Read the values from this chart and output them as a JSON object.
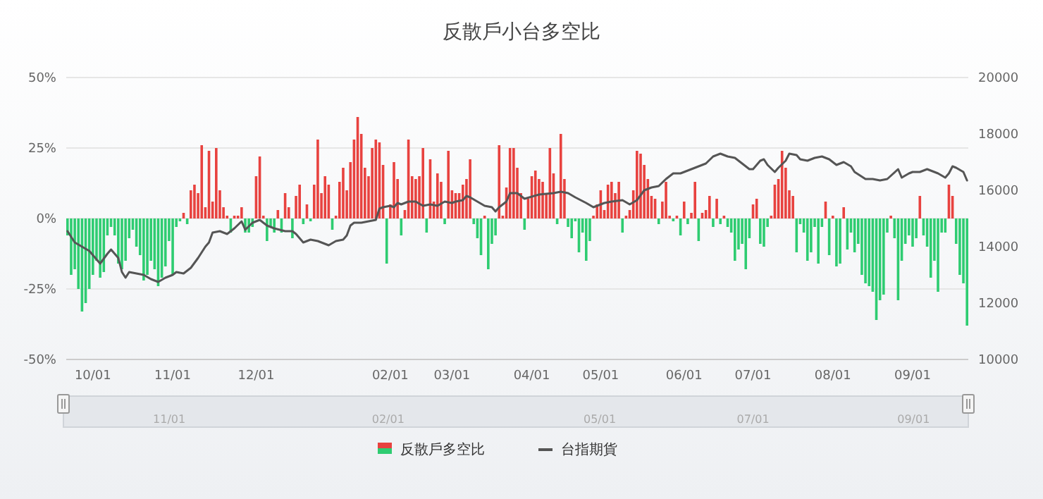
{
  "chart_data": {
    "type": "bar",
    "title": "反散戶小台多空比",
    "categories": [
      null,
      null,
      null,
      null,
      null,
      null,
      null,
      "10/01",
      null,
      null,
      null,
      null,
      null,
      null,
      null,
      null,
      null,
      null,
      null,
      null,
      null,
      null,
      null,
      null,
      null,
      null,
      null,
      null,
      null,
      "11/01",
      null,
      null,
      null,
      null,
      null,
      null,
      null,
      null,
      null,
      null,
      null,
      null,
      null,
      null,
      null,
      null,
      null,
      null,
      null,
      null,
      null,
      null,
      "12/01",
      null,
      null,
      null,
      null,
      null,
      null,
      null,
      null,
      null,
      null,
      null,
      null,
      null,
      null,
      null,
      null,
      null,
      null,
      null,
      null,
      null,
      null,
      null,
      null,
      null,
      null,
      null,
      null,
      null,
      null,
      null,
      null,
      null,
      null,
      null,
      null,
      "02/01",
      null,
      null,
      null,
      null,
      null,
      null,
      null,
      null,
      null,
      null,
      null,
      null,
      null,
      null,
      null,
      null,
      "03/01",
      null,
      null,
      null,
      null,
      null,
      null,
      null,
      null,
      null,
      null,
      null,
      null,
      null,
      null,
      null,
      null,
      null,
      null,
      null,
      null,
      null,
      "04/01",
      null,
      null,
      null,
      null,
      null,
      null,
      null,
      null,
      null,
      null,
      null,
      null,
      null,
      null,
      null,
      null,
      null,
      null,
      "05/01",
      null,
      null,
      null,
      null,
      null,
      null,
      null,
      null,
      null,
      null,
      null,
      null,
      null,
      null,
      null,
      null,
      null,
      null,
      null,
      null,
      null,
      null,
      "06/01",
      null,
      null,
      null,
      null,
      null,
      null,
      null,
      null,
      null,
      null,
      null,
      null,
      null,
      null,
      null,
      null,
      null,
      null,
      "07/01",
      null,
      null,
      null,
      null,
      null,
      null,
      null,
      null,
      null,
      null,
      null,
      null,
      null,
      null,
      null,
      null,
      null,
      null,
      null,
      null,
      null,
      "08/01",
      null,
      null,
      null,
      null,
      null,
      null,
      null,
      null,
      null,
      null,
      null,
      null,
      null,
      null,
      null,
      null,
      null,
      null,
      null,
      null,
      null,
      "09/01",
      null,
      null,
      null,
      null,
      null,
      null,
      null,
      null,
      null,
      null,
      null,
      null,
      null,
      null,
      null
    ],
    "series": [
      {
        "name": "反散戶多空比",
        "values": [
          -6,
          -20,
          -18,
          -25,
          -33,
          -30,
          -25,
          -20,
          -15,
          -21,
          -19,
          -6,
          -3,
          -6,
          -16,
          -18,
          -15,
          -7,
          -4,
          -10,
          -13,
          -22,
          -20,
          -15,
          -18,
          -24,
          -21,
          -17,
          -8,
          -20,
          -3,
          -1,
          2,
          -2,
          10,
          12,
          9,
          26,
          4,
          24,
          6,
          25,
          10,
          4,
          1,
          -5,
          1,
          1,
          4,
          -5,
          -5,
          -3,
          15,
          22,
          1,
          -8,
          -3,
          -5,
          3,
          -5,
          9,
          4,
          -7,
          8,
          12,
          -2,
          5,
          -1,
          12,
          28,
          9,
          15,
          12,
          -4,
          1,
          13,
          18,
          10,
          20,
          28,
          36,
          30,
          18,
          15,
          25,
          28,
          27,
          19,
          -16,
          5,
          20,
          14,
          -6,
          3,
          28,
          15,
          14,
          15,
          25,
          -5,
          21,
          6,
          16,
          13,
          -2,
          24,
          10,
          9,
          9,
          12,
          14,
          21,
          -2,
          -7,
          -13,
          1,
          -18,
          -9,
          -6,
          26,
          1,
          11,
          25,
          25,
          18,
          9,
          -4,
          7,
          15,
          17,
          14,
          13,
          9,
          25,
          16,
          -2,
          30,
          14,
          -3,
          -7,
          -1,
          -12,
          -5,
          -15,
          -8,
          1,
          5,
          10,
          3,
          12,
          13,
          9,
          13,
          -5,
          1,
          3,
          10,
          24,
          23,
          19,
          14,
          8,
          7,
          -2,
          6,
          13,
          1,
          -1,
          1,
          -6,
          6,
          -2,
          2,
          13,
          -8,
          2,
          3,
          8,
          -3,
          7,
          -2,
          1,
          -3,
          -5,
          -15,
          -11,
          -9,
          -18,
          -7,
          5,
          7,
          -9,
          -10,
          -3,
          1,
          12,
          14,
          24,
          18,
          10,
          8,
          -12,
          -2,
          -5,
          -15,
          -12,
          -3,
          -16,
          -3,
          6,
          -13,
          1,
          -17,
          -16,
          4,
          -11,
          -5,
          -12,
          -9,
          -20,
          -23,
          -24,
          -26,
          -36,
          -29,
          -27,
          -5,
          1,
          -7,
          -29,
          -15,
          -9,
          -6,
          -10,
          -7,
          8,
          -6,
          -10,
          -21,
          -15,
          -26,
          -5,
          -5,
          12,
          8,
          -9,
          -20,
          -23,
          -38
        ],
        "colors": [
          "#2ecc71",
          "#2ecc71",
          "#2ecc71",
          "#2ecc71",
          "#2ecc71",
          "#2ecc71",
          "#2ecc71",
          "#2ecc71",
          "#2ecc71",
          "#2ecc71",
          "#2ecc71",
          "#2ecc71",
          "#2ecc71",
          "#2ecc71",
          "#2ecc71",
          "#2ecc71",
          "#2ecc71",
          "#2ecc71",
          "#2ecc71",
          "#2ecc71",
          "#2ecc71",
          "#2ecc71",
          "#2ecc71",
          "#2ecc71",
          "#2ecc71",
          "#2ecc71",
          "#2ecc71",
          "#2ecc71",
          "#2ecc71",
          "#2ecc71",
          "#2ecc71",
          "#2ecc71",
          "#e8423f",
          "#2ecc71",
          "#e8423f",
          "#e8423f",
          "#e8423f",
          "#e8423f",
          "#e8423f",
          "#e8423f",
          "#e8423f",
          "#e8423f",
          "#e8423f",
          "#e8423f",
          "#e8423f",
          "#2ecc71",
          "#e8423f",
          "#e8423f",
          "#e8423f",
          "#2ecc71",
          "#2ecc71",
          "#2ecc71",
          "#e8423f",
          "#e8423f",
          "#e8423f",
          "#2ecc71",
          "#2ecc71",
          "#2ecc71",
          "#e8423f",
          "#2ecc71",
          "#e8423f",
          "#e8423f",
          "#2ecc71",
          "#e8423f",
          "#e8423f",
          "#2ecc71",
          "#e8423f",
          "#2ecc71",
          "#e8423f",
          "#e8423f",
          "#e8423f",
          "#e8423f",
          "#e8423f",
          "#2ecc71",
          "#e8423f",
          "#e8423f",
          "#e8423f",
          "#e8423f",
          "#e8423f",
          "#e8423f",
          "#e8423f",
          "#e8423f",
          "#e8423f",
          "#e8423f",
          "#e8423f",
          "#e8423f",
          "#e8423f",
          "#e8423f",
          "#2ecc71",
          "#e8423f",
          "#e8423f",
          "#e8423f",
          "#2ecc71",
          "#e8423f",
          "#e8423f",
          "#e8423f",
          "#e8423f",
          "#e8423f",
          "#e8423f",
          "#2ecc71",
          "#e8423f",
          "#e8423f",
          "#e8423f",
          "#e8423f",
          "#2ecc71",
          "#e8423f",
          "#e8423f",
          "#e8423f",
          "#e8423f",
          "#e8423f",
          "#e8423f",
          "#e8423f",
          "#2ecc71",
          "#2ecc71",
          "#2ecc71",
          "#e8423f",
          "#2ecc71",
          "#2ecc71",
          "#2ecc71",
          "#e8423f",
          "#e8423f",
          "#e8423f",
          "#e8423f",
          "#e8423f",
          "#e8423f",
          "#e8423f",
          "#2ecc71",
          "#e8423f",
          "#e8423f",
          "#e8423f",
          "#e8423f",
          "#e8423f",
          "#e8423f",
          "#e8423f",
          "#e8423f",
          "#2ecc71",
          "#e8423f",
          "#e8423f",
          "#2ecc71",
          "#2ecc71",
          "#2ecc71",
          "#2ecc71",
          "#2ecc71",
          "#2ecc71",
          "#2ecc71",
          "#e8423f",
          "#e8423f",
          "#e8423f",
          "#e8423f",
          "#e8423f",
          "#e8423f",
          "#e8423f",
          "#e8423f",
          "#2ecc71",
          "#e8423f",
          "#e8423f",
          "#e8423f",
          "#e8423f",
          "#e8423f",
          "#e8423f",
          "#e8423f",
          "#e8423f",
          "#e8423f",
          "#2ecc71",
          "#e8423f",
          "#e8423f",
          "#e8423f",
          "#2ecc71",
          "#e8423f",
          "#2ecc71",
          "#e8423f",
          "#2ecc71",
          "#e8423f",
          "#e8423f",
          "#2ecc71",
          "#e8423f",
          "#e8423f",
          "#e8423f",
          "#2ecc71",
          "#e8423f",
          "#2ecc71",
          "#e8423f",
          "#2ecc71",
          "#2ecc71",
          "#2ecc71",
          "#2ecc71",
          "#2ecc71",
          "#2ecc71",
          "#2ecc71",
          "#e8423f",
          "#e8423f",
          "#2ecc71",
          "#2ecc71",
          "#2ecc71",
          "#e8423f",
          "#e8423f",
          "#e8423f",
          "#e8423f",
          "#e8423f",
          "#e8423f",
          "#e8423f",
          "#2ecc71",
          "#2ecc71",
          "#2ecc71",
          "#2ecc71",
          "#2ecc71",
          "#2ecc71",
          "#2ecc71",
          "#2ecc71",
          "#e8423f",
          "#2ecc71",
          "#e8423f",
          "#2ecc71",
          "#2ecc71",
          "#e8423f",
          "#2ecc71",
          "#2ecc71",
          "#2ecc71",
          "#2ecc71",
          "#2ecc71",
          "#2ecc71",
          "#2ecc71",
          "#2ecc71",
          "#2ecc71",
          "#2ecc71",
          "#2ecc71",
          "#2ecc71",
          "#e8423f",
          "#2ecc71",
          "#2ecc71",
          "#2ecc71",
          "#2ecc71",
          "#2ecc71",
          "#2ecc71",
          "#2ecc71",
          "#e8423f",
          "#2ecc71",
          "#2ecc71",
          "#2ecc71",
          "#2ecc71",
          "#2ecc71",
          "#2ecc71",
          "#2ecc71",
          "#e8423f",
          "#e8423f",
          "#2ecc71",
          "#2ecc71",
          "#2ecc71",
          "#2ecc71"
        ]
      },
      {
        "name": "台指期貨",
        "type": "line",
        "axis": "y2",
        "color": "#555555",
        "values": [
          14550,
          null,
          14150,
          null,
          null,
          null,
          13850,
          null,
          null,
          13400,
          null,
          13750,
          13900,
          null,
          13600,
          13100,
          12900,
          13100,
          null,
          13050,
          null,
          13000,
          null,
          12850,
          null,
          12750,
          null,
          12900,
          null,
          13000,
          13100,
          null,
          13050,
          null,
          13250,
          null,
          13600,
          null,
          14000,
          14150,
          14500,
          null,
          14550,
          null,
          14450,
          null,
          14650,
          null,
          14900,
          14600,
          null,
          14850,
          null,
          14950,
          null,
          14750,
          null,
          14650,
          null,
          null,
          14550,
          null,
          14550,
          14450,
          null,
          14150,
          null,
          14250,
          null,
          14200,
          null,
          null,
          14050,
          null,
          14200,
          null,
          14250,
          14400,
          14750,
          14850,
          null,
          14850,
          null,
          14900,
          null,
          14950,
          15350,
          15400,
          null,
          15450,
          15400,
          15550,
          15500,
          null,
          15600,
          15600,
          15600,
          null,
          15450,
          null,
          15500,
          null,
          15450,
          null,
          15600,
          null,
          15550,
          15600,
          null,
          15650,
          15800,
          15750,
          null,
          15600,
          null,
          15450,
          null,
          15400,
          15250,
          15400,
          null,
          15600,
          15900,
          null,
          15900,
          null,
          15700,
          null,
          null,
          null,
          15850,
          null,
          null,
          null,
          15900,
          null,
          15950,
          null,
          15900,
          null,
          15750,
          null,
          null,
          15550,
          null,
          15400,
          15450,
          null,
          15550,
          null,
          15600,
          null,
          null,
          15650,
          null,
          15500,
          null,
          15650,
          null,
          16000,
          null,
          16100,
          null,
          16150,
          null,
          16400,
          null,
          16600,
          null,
          16600,
          null,
          16700,
          null,
          16800,
          null,
          16900,
          16950,
          null,
          17200,
          null,
          17300,
          null,
          17200,
          null,
          17150,
          null,
          16950,
          null,
          16750,
          16750,
          null,
          17050,
          17100,
          16900,
          null,
          16650,
          16800,
          null,
          17050,
          17300,
          null,
          17250,
          17100,
          null,
          17050,
          null,
          17150,
          null,
          17200,
          null,
          17100,
          null,
          16900,
          null,
          17000,
          null,
          16850,
          16650,
          null,
          null,
          16400,
          null,
          16400,
          null,
          16350,
          null,
          16400,
          null,
          null,
          16750,
          16450,
          null,
          16600,
          16650,
          null,
          16650,
          null,
          16750,
          null,
          null,
          16600,
          null,
          16450,
          16600,
          16850,
          16800,
          null,
          16650,
          16350
        ]
      }
    ],
    "ylim": [
      -50,
      50
    ],
    "yticks": [
      {
        "value": -50,
        "label": "-50%"
      },
      {
        "value": -25,
        "label": "-25%"
      },
      {
        "value": 0,
        "label": "0%"
      },
      {
        "value": 25,
        "label": "25%"
      },
      {
        "value": 50,
        "label": "50%"
      }
    ],
    "y2lim": [
      10000,
      20000
    ],
    "y2ticks": [
      10000,
      12000,
      14000,
      16000,
      18000,
      20000
    ],
    "grid": "y",
    "legend": "bottom"
  }
}
